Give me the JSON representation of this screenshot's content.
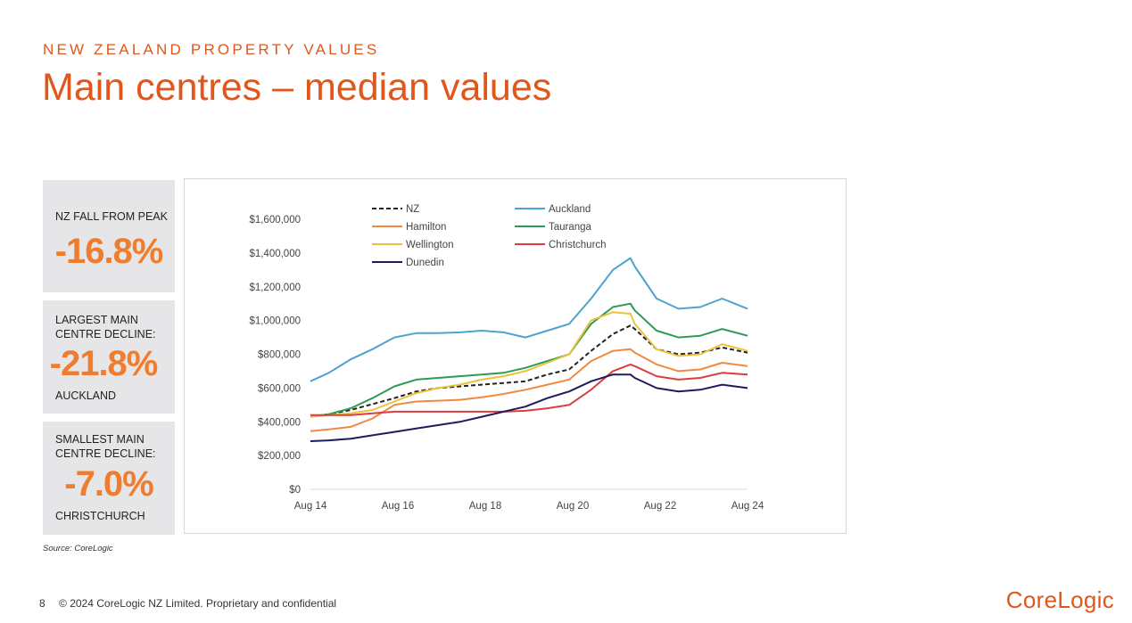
{
  "header": {
    "eyebrow": "NEW ZEALAND PROPERTY VALUES",
    "title": "Main centres – median values"
  },
  "stats": [
    {
      "label": "NZ FALL FROM PEAK",
      "value": "-16.8%",
      "sub": ""
    },
    {
      "label": "LARGEST MAIN CENTRE DECLINE:",
      "value": "-21.8%",
      "sub": "AUCKLAND"
    },
    {
      "label": "SMALLEST MAIN CENTRE DECLINE:",
      "value": "-7.0%",
      "sub": "CHRISTCHURCH"
    }
  ],
  "source": "Source: CoreLogic",
  "footer": {
    "page": "8",
    "text": "© 2024 CoreLogic NZ Limited. Proprietary and confidential"
  },
  "logo": "CoreLogic",
  "chart_data": {
    "type": "line",
    "x": [
      2014.58,
      2015.0,
      2015.5,
      2016.0,
      2016.5,
      2017.0,
      2017.5,
      2018.0,
      2018.5,
      2019.0,
      2019.5,
      2020.0,
      2020.5,
      2021.0,
      2021.5,
      2021.9,
      2022.0,
      2022.5,
      2023.0,
      2023.5,
      2024.0,
      2024.58
    ],
    "x_ticks": [
      "Aug 14",
      "Aug 16",
      "Aug 18",
      "Aug 20",
      "Aug 22",
      "Aug 24"
    ],
    "x_tick_values": [
      2014.58,
      2016.58,
      2018.58,
      2020.58,
      2022.58,
      2024.58
    ],
    "xlim": [
      2014.58,
      2024.58
    ],
    "y_ticks": [
      "$0",
      "$200,000",
      "$400,000",
      "$600,000",
      "$800,000",
      "$1,000,000",
      "$1,200,000",
      "$1,400,000",
      "$1,600,000"
    ],
    "ylim": [
      0,
      1600000
    ],
    "legend_position": "top",
    "series": [
      {
        "name": "NZ",
        "color": "#222222",
        "dash": true,
        "values": [
          430000,
          445000,
          470000,
          505000,
          540000,
          580000,
          600000,
          610000,
          620000,
          630000,
          640000,
          680000,
          710000,
          820000,
          920000,
          970000,
          950000,
          830000,
          800000,
          810000,
          840000,
          810000
        ]
      },
      {
        "name": "Auckland",
        "color": "#4ba3cf",
        "dash": false,
        "values": [
          640000,
          690000,
          770000,
          830000,
          900000,
          925000,
          925000,
          930000,
          940000,
          930000,
          900000,
          940000,
          980000,
          1130000,
          1300000,
          1370000,
          1320000,
          1130000,
          1070000,
          1080000,
          1130000,
          1070000
        ]
      },
      {
        "name": "Hamilton",
        "color": "#ef8a3f",
        "dash": false,
        "values": [
          345000,
          355000,
          370000,
          420000,
          500000,
          520000,
          525000,
          530000,
          545000,
          565000,
          590000,
          620000,
          650000,
          760000,
          820000,
          830000,
          810000,
          740000,
          700000,
          710000,
          750000,
          730000
        ]
      },
      {
        "name": "Tauranga",
        "color": "#2c9c54",
        "dash": false,
        "values": [
          430000,
          445000,
          480000,
          540000,
          610000,
          650000,
          660000,
          670000,
          680000,
          690000,
          720000,
          760000,
          800000,
          980000,
          1080000,
          1100000,
          1060000,
          940000,
          900000,
          910000,
          950000,
          910000
        ]
      },
      {
        "name": "Wellington",
        "color": "#ecc23c",
        "dash": false,
        "values": [
          430000,
          440000,
          450000,
          470000,
          520000,
          570000,
          600000,
          620000,
          650000,
          670000,
          700000,
          750000,
          800000,
          1000000,
          1050000,
          1040000,
          980000,
          830000,
          790000,
          800000,
          860000,
          820000
        ]
      },
      {
        "name": "Christchurch",
        "color": "#dd3c3f",
        "dash": false,
        "values": [
          440000,
          440000,
          440000,
          450000,
          460000,
          460000,
          460000,
          460000,
          460000,
          460000,
          465000,
          480000,
          500000,
          590000,
          700000,
          740000,
          730000,
          670000,
          650000,
          660000,
          690000,
          680000
        ]
      },
      {
        "name": "Dunedin",
        "color": "#1d1d5e",
        "dash": false,
        "values": [
          285000,
          290000,
          300000,
          320000,
          340000,
          360000,
          380000,
          400000,
          430000,
          460000,
          490000,
          540000,
          580000,
          640000,
          680000,
          680000,
          660000,
          600000,
          580000,
          590000,
          620000,
          600000
        ]
      }
    ]
  }
}
